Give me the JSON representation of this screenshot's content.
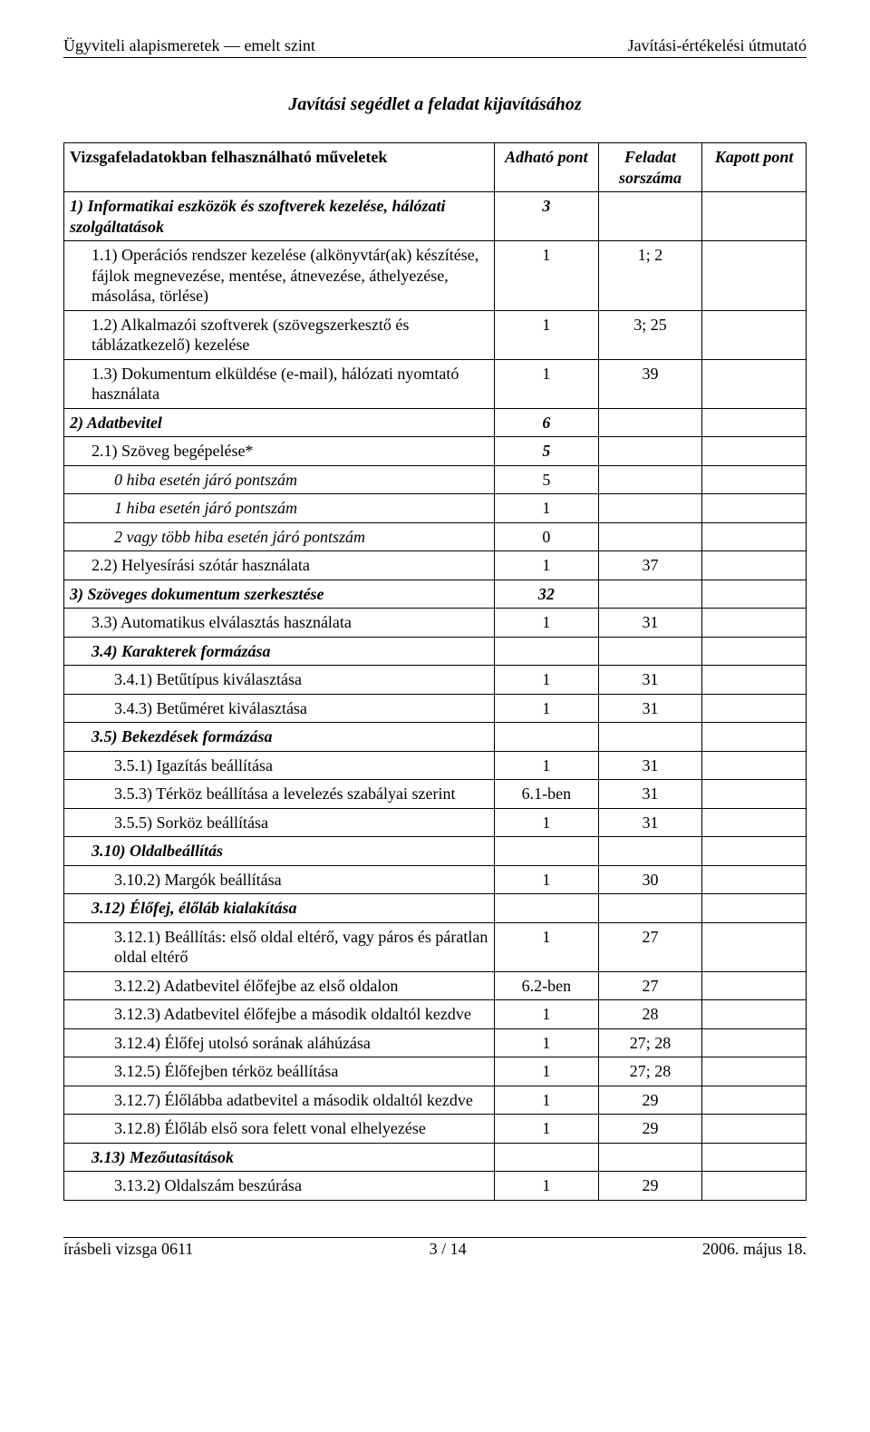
{
  "header": {
    "left": "Ügyviteli alapismeretek — emelt szint",
    "right": "Javítási-értékelési útmutató"
  },
  "title": "Javítási segédlet a feladat kijavításához",
  "columns": {
    "desc": "Vizsgafeladatokban felhasználható műveletek",
    "a": "Adható pont",
    "b": "Feladat sorszáma",
    "c": "Kapott pont"
  },
  "rows": [
    {
      "d": "1) Informatikai eszközök és szoftverek kezelése, hálózati szolgáltatások",
      "a": "3",
      "b": "",
      "c": "",
      "style": "bold ital",
      "indent": 0,
      "ac": "center bold ital"
    },
    {
      "d": "1.1) Operációs rendszer kezelése (alkönyvtár(ak) készítése, fájlok megnevezése, mentése, átnevezése, áthelyezése, másolása, törlése)",
      "a": "1",
      "b": "1; 2",
      "c": "",
      "indent": 1
    },
    {
      "d": "1.2) Alkalmazói szoftverek (szövegszerkesztő és táblázatkezelő) kezelése",
      "a": "1",
      "b": "3; 25",
      "c": "",
      "indent": 1
    },
    {
      "d": "1.3) Dokumentum elküldése (e-mail), hálózati nyomtató használata",
      "a": "1",
      "b": "39",
      "c": "",
      "indent": 1
    },
    {
      "d": "2) Adatbevitel",
      "a": "6",
      "b": "",
      "c": "",
      "style": "bold ital",
      "indent": 0,
      "ac": "center bold ital"
    },
    {
      "d": "2.1) Szöveg begépelése*",
      "a": "5",
      "b": "",
      "c": "",
      "indent": 1,
      "ac": "center bold ital"
    },
    {
      "d": "0 hiba esetén járó pontszám",
      "a": "5",
      "b": "",
      "c": "",
      "style": "ital",
      "indent": 2
    },
    {
      "d": "1 hiba esetén járó pontszám",
      "a": "1",
      "b": "",
      "c": "",
      "style": "ital",
      "indent": 2
    },
    {
      "d": "2 vagy több hiba esetén járó pontszám",
      "a": "0",
      "b": "",
      "c": "",
      "style": "ital",
      "indent": 2
    },
    {
      "d": "2.2) Helyesírási szótár használata",
      "a": "1",
      "b": "37",
      "c": "",
      "indent": 1
    },
    {
      "d": "3) Szöveges dokumentum szerkesztése",
      "a": "32",
      "b": "",
      "c": "",
      "style": "bold ital",
      "indent": 0,
      "ac": "center bold ital"
    },
    {
      "d": "3.3) Automatikus elválasztás használata",
      "a": "1",
      "b": "31",
      "c": "",
      "indent": 1
    },
    {
      "d": "3.4) Karakterek formázása",
      "a": "",
      "b": "",
      "c": "",
      "style": "bold ital",
      "indent": 1
    },
    {
      "d": "3.4.1) Betűtípus kiválasztása",
      "a": "1",
      "b": "31",
      "c": "",
      "indent": 2
    },
    {
      "d": "3.4.3) Betűméret kiválasztása",
      "a": "1",
      "b": "31",
      "c": "",
      "indent": 2
    },
    {
      "d": "3.5) Bekezdések formázása",
      "a": "",
      "b": "",
      "c": "",
      "style": "bold ital",
      "indent": 1
    },
    {
      "d": "3.5.1) Igazítás beállítása",
      "a": "1",
      "b": "31",
      "c": "",
      "indent": 2
    },
    {
      "d": "3.5.3) Térköz beállítása a levelezés szabályai szerint",
      "a": "6.1-ben",
      "b": "31",
      "c": "",
      "indent": 2
    },
    {
      "d": "3.5.5) Sorköz beállítása",
      "a": "1",
      "b": "31",
      "c": "",
      "indent": 2
    },
    {
      "d": "3.10) Oldalbeállítás",
      "a": "",
      "b": "",
      "c": "",
      "style": "bold ital",
      "indent": 1
    },
    {
      "d": "3.10.2) Margók beállítása",
      "a": "1",
      "b": "30",
      "c": "",
      "indent": 2
    },
    {
      "d": "3.12) Élőfej, élőláb kialakítása",
      "a": "",
      "b": "",
      "c": "",
      "style": "bold ital",
      "indent": 1
    },
    {
      "d": "3.12.1) Beállítás: első oldal eltérő, vagy páros és páratlan oldal eltérő",
      "a": "1",
      "b": "27",
      "c": "",
      "indent": 2
    },
    {
      "d": "3.12.2) Adatbevitel élőfejbe az első oldalon",
      "a": "6.2-ben",
      "b": "27",
      "c": "",
      "indent": 2
    },
    {
      "d": "3.12.3) Adatbevitel élőfejbe a második oldaltól kezdve",
      "a": "1",
      "b": "28",
      "c": "",
      "indent": 2
    },
    {
      "d": "3.12.4) Élőfej utolsó sorának aláhúzása",
      "a": "1",
      "b": "27; 28",
      "c": "",
      "indent": 2
    },
    {
      "d": "3.12.5) Élőfejben térköz beállítása",
      "a": "1",
      "b": "27; 28",
      "c": "",
      "indent": 2
    },
    {
      "d": "3.12.7) Élőlábba adatbevitel a második oldaltól kezdve",
      "a": "1",
      "b": "29",
      "c": "",
      "indent": 2
    },
    {
      "d": "3.12.8) Élőláb első sora felett vonal elhelyezése",
      "a": "1",
      "b": "29",
      "c": "",
      "indent": 2
    },
    {
      "d": "3.13) Mezőutasítások",
      "a": "",
      "b": "",
      "c": "",
      "style": "bold ital",
      "indent": 1
    },
    {
      "d": "3.13.2) Oldalszám beszúrása",
      "a": "1",
      "b": "29",
      "c": "",
      "indent": 2
    }
  ],
  "footer": {
    "left": "írásbeli vizsga 0611",
    "center": "3 / 14",
    "right": "2006. május 18."
  }
}
